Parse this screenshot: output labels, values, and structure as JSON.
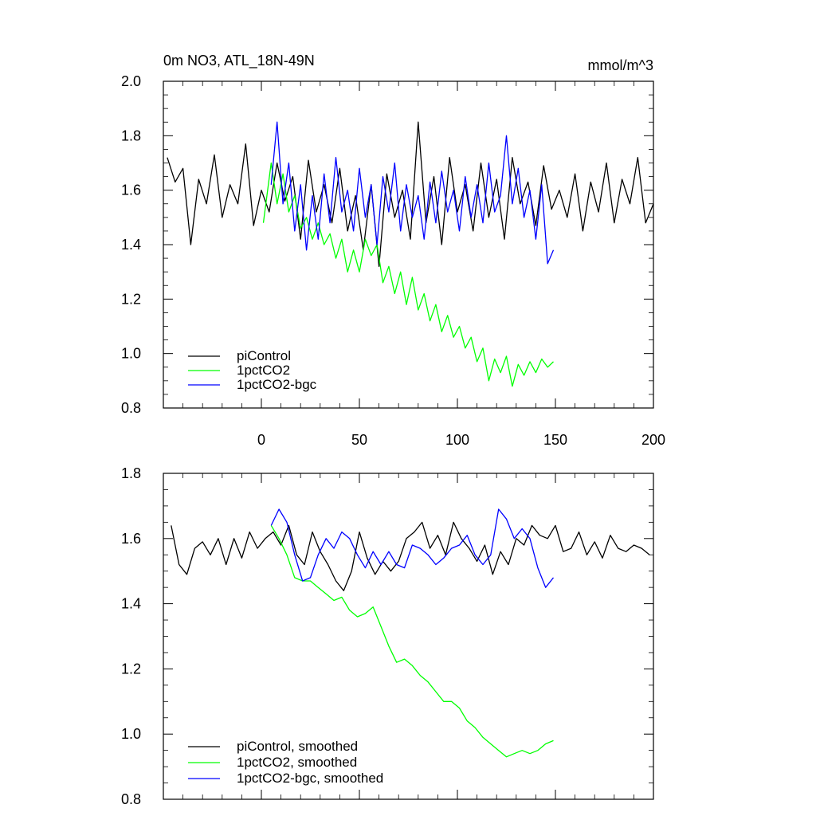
{
  "chart_data": [
    {
      "type": "line",
      "title": "0m NO3, ATL_18N-49N",
      "units": "mmol/m^3",
      "xlabel": "",
      "ylabel": "",
      "xlim": [
        -50,
        200
      ],
      "ylim": [
        0.8,
        2.0
      ],
      "xticks": [
        0,
        50,
        100,
        150,
        200
      ],
      "xtick_labels": [
        "0",
        "50",
        "100",
        "150",
        "200"
      ],
      "yticks": [
        0.8,
        1.0,
        1.2,
        1.4,
        1.6,
        1.8,
        2.0
      ],
      "ytick_labels": [
        "0.8",
        "1.0",
        "1.2",
        "1.4",
        "1.6",
        "1.8",
        "2.0"
      ],
      "legend_position": "bottom-left",
      "grid": false,
      "series": [
        {
          "name": "piControl",
          "color": "#000000",
          "x": [
            -48,
            -44,
            -40,
            -36,
            -32,
            -28,
            -24,
            -20,
            -16,
            -12,
            -8,
            -4,
            0,
            4,
            8,
            12,
            16,
            20,
            24,
            28,
            32,
            36,
            40,
            44,
            48,
            52,
            56,
            60,
            64,
            68,
            72,
            76,
            80,
            84,
            88,
            92,
            96,
            100,
            104,
            108,
            112,
            116,
            120,
            124,
            128,
            132,
            136,
            140,
            144,
            148,
            152,
            156,
            160,
            164,
            168,
            172,
            176,
            180,
            184,
            188,
            192,
            196,
            200
          ],
          "values": [
            1.72,
            1.63,
            1.68,
            1.4,
            1.64,
            1.55,
            1.73,
            1.5,
            1.62,
            1.55,
            1.77,
            1.47,
            1.6,
            1.52,
            1.7,
            1.56,
            1.65,
            1.42,
            1.71,
            1.52,
            1.62,
            1.48,
            1.68,
            1.45,
            1.58,
            1.38,
            1.62,
            1.32,
            1.66,
            1.5,
            1.6,
            1.42,
            1.85,
            1.48,
            1.65,
            1.4,
            1.72,
            1.52,
            1.62,
            1.45,
            1.7,
            1.5,
            1.64,
            1.42,
            1.72,
            1.55,
            1.63,
            1.47,
            1.69,
            1.53,
            1.6,
            1.5,
            1.66,
            1.45,
            1.63,
            1.52,
            1.7,
            1.48,
            1.64,
            1.55,
            1.72,
            1.48,
            1.55
          ]
        },
        {
          "name": "1pctCO2",
          "color": "#00ff00",
          "x": [
            1,
            5,
            8,
            11,
            14,
            17,
            20,
            23,
            26,
            29,
            32,
            35,
            38,
            41,
            44,
            47,
            50,
            53,
            56,
            59,
            62,
            65,
            68,
            71,
            74,
            77,
            80,
            83,
            86,
            89,
            92,
            95,
            98,
            101,
            104,
            107,
            110,
            113,
            116,
            119,
            122,
            125,
            128,
            131,
            134,
            137,
            140,
            143,
            146,
            149
          ],
          "values": [
            1.48,
            1.7,
            1.55,
            1.66,
            1.52,
            1.58,
            1.46,
            1.5,
            1.42,
            1.48,
            1.4,
            1.44,
            1.35,
            1.42,
            1.3,
            1.38,
            1.3,
            1.42,
            1.36,
            1.4,
            1.26,
            1.32,
            1.22,
            1.3,
            1.18,
            1.28,
            1.16,
            1.22,
            1.12,
            1.18,
            1.08,
            1.14,
            1.06,
            1.1,
            1.02,
            1.06,
            0.97,
            1.02,
            0.9,
            0.98,
            0.93,
            0.99,
            0.88,
            0.96,
            0.92,
            0.97,
            0.93,
            0.98,
            0.95,
            0.97
          ]
        },
        {
          "name": "1pctCO2-bgc",
          "color": "#0000ff",
          "x": [
            5,
            8,
            11,
            14,
            17,
            20,
            23,
            26,
            29,
            32,
            35,
            38,
            41,
            44,
            47,
            50,
            53,
            56,
            59,
            62,
            65,
            68,
            71,
            74,
            77,
            80,
            83,
            86,
            89,
            92,
            95,
            98,
            101,
            104,
            107,
            110,
            113,
            116,
            119,
            122,
            125,
            128,
            131,
            134,
            137,
            140,
            143,
            146,
            149
          ],
          "values": [
            1.62,
            1.85,
            1.55,
            1.7,
            1.45,
            1.62,
            1.38,
            1.58,
            1.42,
            1.66,
            1.48,
            1.72,
            1.52,
            1.6,
            1.45,
            1.68,
            1.5,
            1.62,
            1.4,
            1.65,
            1.52,
            1.7,
            1.45,
            1.62,
            1.5,
            1.58,
            1.42,
            1.63,
            1.48,
            1.67,
            1.52,
            1.6,
            1.45,
            1.65,
            1.5,
            1.62,
            1.48,
            1.7,
            1.52,
            1.58,
            1.8,
            1.55,
            1.68,
            1.5,
            1.6,
            1.42,
            1.62,
            1.33,
            1.38
          ]
        }
      ]
    },
    {
      "type": "line",
      "title": "",
      "xlabel": "",
      "ylabel": "",
      "xlim": [
        -50,
        200
      ],
      "ylim": [
        0.8,
        1.8
      ],
      "xticks": [
        0,
        50,
        100,
        150,
        200
      ],
      "yticks": [
        0.8,
        1.0,
        1.2,
        1.4,
        1.6,
        1.8
      ],
      "ytick_labels": [
        "0.8",
        "1.0",
        "1.2",
        "1.4",
        "1.6",
        "1.8"
      ],
      "legend_position": "bottom-left",
      "grid": false,
      "series": [
        {
          "name": "piControl, smoothed",
          "color": "#000000",
          "x": [
            -46,
            -42,
            -38,
            -34,
            -30,
            -26,
            -22,
            -18,
            -14,
            -10,
            -6,
            -2,
            2,
            6,
            10,
            14,
            18,
            22,
            26,
            30,
            34,
            38,
            42,
            46,
            50,
            54,
            58,
            62,
            66,
            70,
            74,
            78,
            82,
            86,
            90,
            94,
            98,
            102,
            106,
            110,
            114,
            118,
            122,
            126,
            130,
            134,
            138,
            142,
            146,
            150,
            154,
            158,
            162,
            166,
            170,
            174,
            178,
            182,
            186,
            190,
            194,
            198
          ],
          "values": [
            1.64,
            1.52,
            1.49,
            1.57,
            1.59,
            1.55,
            1.6,
            1.52,
            1.6,
            1.54,
            1.62,
            1.57,
            1.6,
            1.62,
            1.58,
            1.64,
            1.55,
            1.52,
            1.62,
            1.56,
            1.52,
            1.47,
            1.44,
            1.5,
            1.62,
            1.54,
            1.49,
            1.53,
            1.5,
            1.53,
            1.6,
            1.62,
            1.65,
            1.57,
            1.61,
            1.55,
            1.65,
            1.6,
            1.57,
            1.53,
            1.58,
            1.49,
            1.56,
            1.52,
            1.6,
            1.58,
            1.64,
            1.61,
            1.6,
            1.64,
            1.56,
            1.57,
            1.62,
            1.55,
            1.59,
            1.54,
            1.61,
            1.57,
            1.56,
            1.58,
            1.57,
            1.55
          ]
        },
        {
          "name": "1pctCO2, smoothed",
          "color": "#00ff00",
          "x": [
            5,
            9,
            13,
            17,
            21,
            25,
            29,
            33,
            37,
            41,
            45,
            49,
            53,
            57,
            61,
            65,
            69,
            73,
            77,
            81,
            85,
            89,
            93,
            97,
            101,
            105,
            109,
            113,
            117,
            121,
            125,
            129,
            133,
            137,
            141,
            145,
            149
          ],
          "values": [
            1.64,
            1.6,
            1.55,
            1.48,
            1.47,
            1.47,
            1.45,
            1.43,
            1.41,
            1.42,
            1.38,
            1.36,
            1.37,
            1.39,
            1.33,
            1.27,
            1.22,
            1.23,
            1.21,
            1.18,
            1.16,
            1.13,
            1.1,
            1.1,
            1.08,
            1.04,
            1.02,
            0.99,
            0.97,
            0.95,
            0.93,
            0.94,
            0.95,
            0.94,
            0.95,
            0.97,
            0.98
          ]
        },
        {
          "name": "1pctCO2-bgc, smoothed",
          "color": "#0000ff",
          "x": [
            5,
            9,
            13,
            17,
            21,
            25,
            29,
            33,
            37,
            41,
            45,
            49,
            53,
            57,
            61,
            65,
            69,
            73,
            77,
            81,
            85,
            89,
            93,
            97,
            101,
            105,
            109,
            113,
            117,
            121,
            125,
            129,
            133,
            137,
            141,
            145,
            149
          ],
          "values": [
            1.64,
            1.69,
            1.65,
            1.55,
            1.47,
            1.48,
            1.55,
            1.6,
            1.57,
            1.62,
            1.6,
            1.55,
            1.51,
            1.56,
            1.52,
            1.56,
            1.52,
            1.51,
            1.58,
            1.57,
            1.55,
            1.52,
            1.54,
            1.57,
            1.58,
            1.61,
            1.55,
            1.52,
            1.55,
            1.69,
            1.66,
            1.6,
            1.63,
            1.6,
            1.51,
            1.45,
            1.48
          ]
        }
      ]
    }
  ]
}
